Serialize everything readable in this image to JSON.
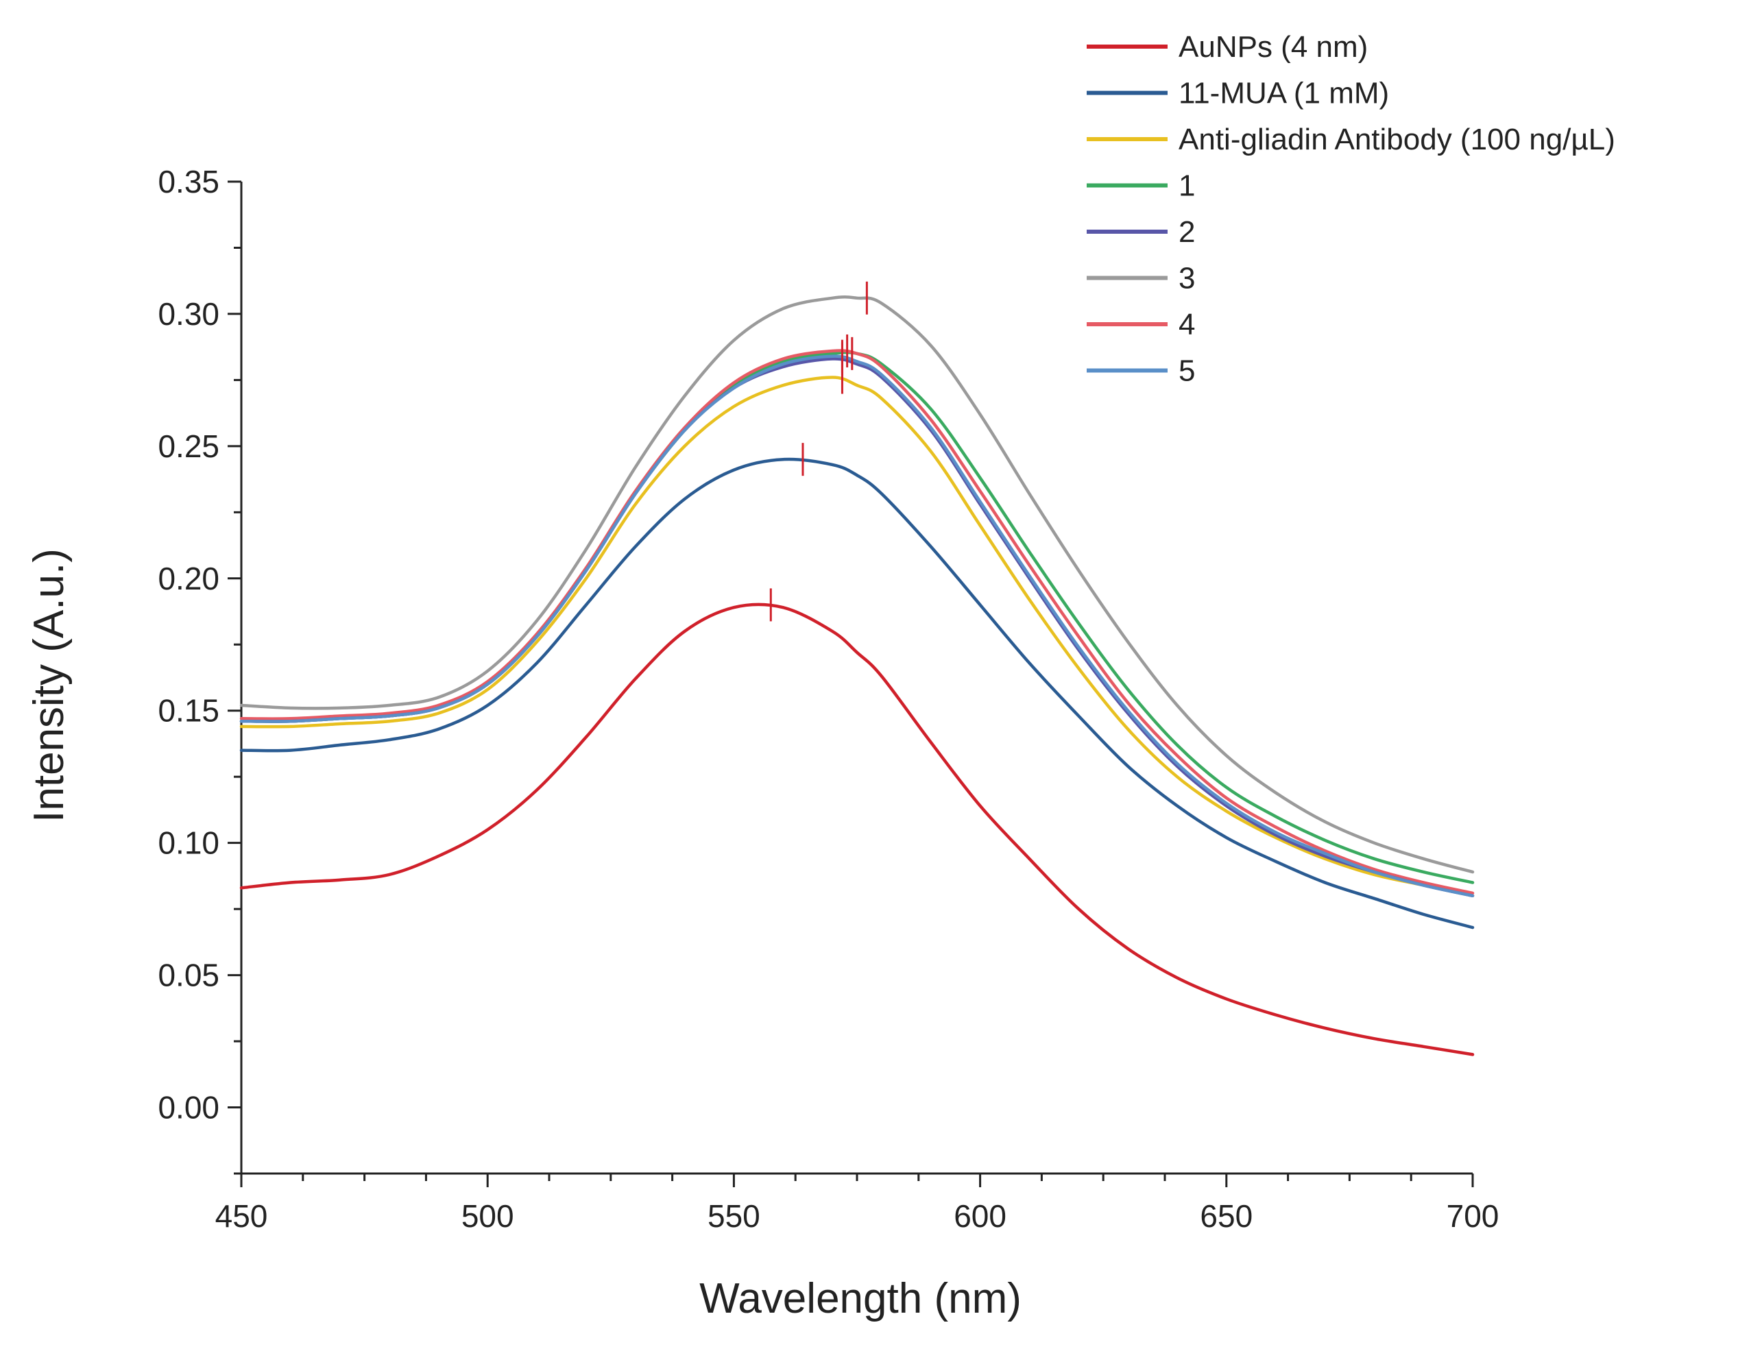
{
  "chart_data": {
    "type": "line",
    "title": "",
    "xlabel": "Wavelength (nm)",
    "ylabel": "Intensity (A.u.)",
    "xlim": [
      450,
      700
    ],
    "ylim": [
      -0.025,
      0.35
    ],
    "x_ticks": [
      450,
      500,
      550,
      600,
      650,
      700
    ],
    "x_tick_labels": [
      "450",
      "500",
      "550",
      "600",
      "650",
      "700"
    ],
    "y_ticks": [
      0.0,
      0.05,
      0.1,
      0.15,
      0.2,
      0.25,
      0.3,
      0.35
    ],
    "y_tick_labels": [
      "0.00",
      "0.05",
      "0.10",
      "0.15",
      "0.20",
      "0.25",
      "0.30",
      "0.35"
    ],
    "x_minor_step": 12.5,
    "y_minor_step": 0.025,
    "grid": false,
    "legend_position": "top-right",
    "x": [
      450,
      460,
      470,
      480,
      490,
      500,
      510,
      520,
      530,
      540,
      550,
      560,
      570,
      575,
      580,
      590,
      600,
      610,
      620,
      630,
      640,
      650,
      660,
      670,
      680,
      690,
      700
    ],
    "series": [
      {
        "name": "AuNPs (4 nm)",
        "color": "#d0202a",
        "peak": [
          557.5,
          0.19
        ],
        "values": [
          0.083,
          0.085,
          0.086,
          0.088,
          0.095,
          0.105,
          0.12,
          0.14,
          0.162,
          0.18,
          0.189,
          0.189,
          0.18,
          0.172,
          0.163,
          0.138,
          0.114,
          0.094,
          0.075,
          0.06,
          0.049,
          0.041,
          0.035,
          0.03,
          0.026,
          0.023,
          0.02
        ]
      },
      {
        "name": "11-MUA (1 mM)",
        "color": "#2a5b92",
        "peak": [
          564,
          0.245
        ],
        "values": [
          0.135,
          0.135,
          0.137,
          0.139,
          0.143,
          0.152,
          0.168,
          0.19,
          0.212,
          0.23,
          0.241,
          0.245,
          0.243,
          0.239,
          0.232,
          0.212,
          0.19,
          0.168,
          0.148,
          0.129,
          0.114,
          0.102,
          0.093,
          0.085,
          0.079,
          0.073,
          0.068
        ]
      },
      {
        "name": "Anti-gliadin Antibody (100 ng/µL)",
        "color": "#e8c020",
        "peak": [
          572,
          0.276
        ],
        "values": [
          0.144,
          0.144,
          0.145,
          0.146,
          0.149,
          0.158,
          0.176,
          0.2,
          0.228,
          0.25,
          0.265,
          0.273,
          0.276,
          0.273,
          0.268,
          0.248,
          0.22,
          0.192,
          0.166,
          0.143,
          0.125,
          0.112,
          0.102,
          0.094,
          0.088,
          0.084,
          0.08
        ]
      },
      {
        "name": "1",
        "color": "#3aaa60",
        "peak": [
          574,
          0.285
        ],
        "values": [
          0.146,
          0.146,
          0.147,
          0.148,
          0.151,
          0.16,
          0.178,
          0.203,
          0.232,
          0.256,
          0.273,
          0.282,
          0.285,
          0.285,
          0.281,
          0.264,
          0.238,
          0.21,
          0.183,
          0.158,
          0.137,
          0.121,
          0.11,
          0.101,
          0.094,
          0.089,
          0.085
        ]
      },
      {
        "name": "2",
        "color": "#5856a8",
        "peak": [
          572,
          0.283
        ],
        "values": [
          0.146,
          0.146,
          0.147,
          0.148,
          0.151,
          0.16,
          0.178,
          0.203,
          0.232,
          0.256,
          0.272,
          0.28,
          0.283,
          0.281,
          0.276,
          0.256,
          0.228,
          0.2,
          0.173,
          0.149,
          0.129,
          0.114,
          0.103,
          0.095,
          0.089,
          0.084,
          0.08
        ]
      },
      {
        "name": "3",
        "color": "#9a9a9a",
        "peak": [
          577,
          0.306
        ],
        "values": [
          0.152,
          0.151,
          0.151,
          0.152,
          0.155,
          0.165,
          0.184,
          0.211,
          0.242,
          0.269,
          0.29,
          0.302,
          0.306,
          0.306,
          0.304,
          0.288,
          0.262,
          0.232,
          0.203,
          0.176,
          0.152,
          0.133,
          0.119,
          0.108,
          0.1,
          0.094,
          0.089
        ]
      },
      {
        "name": "4",
        "color": "#e65a64",
        "peak": [
          573,
          0.286
        ],
        "values": [
          0.147,
          0.147,
          0.148,
          0.149,
          0.152,
          0.161,
          0.179,
          0.204,
          0.233,
          0.257,
          0.274,
          0.283,
          0.286,
          0.285,
          0.28,
          0.26,
          0.233,
          0.205,
          0.178,
          0.153,
          0.133,
          0.117,
          0.106,
          0.097,
          0.09,
          0.085,
          0.081
        ]
      },
      {
        "name": "5",
        "color": "#5a8fc8",
        "peak": [
          572,
          0.284
        ],
        "values": [
          0.146,
          0.146,
          0.147,
          0.148,
          0.151,
          0.16,
          0.178,
          0.203,
          0.232,
          0.256,
          0.272,
          0.281,
          0.284,
          0.282,
          0.277,
          0.257,
          0.229,
          0.201,
          0.174,
          0.15,
          0.13,
          0.115,
          0.104,
          0.096,
          0.089,
          0.084,
          0.08
        ]
      }
    ],
    "peak_marker_color": "#d0202a"
  }
}
